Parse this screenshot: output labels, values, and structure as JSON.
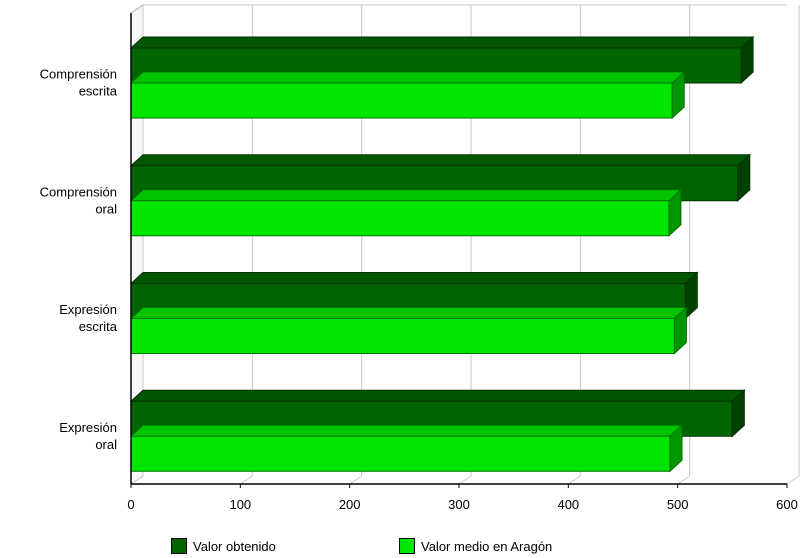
{
  "chart_data": {
    "type": "bar",
    "orientation": "horizontal",
    "style": "3d",
    "categories": [
      [
        "Comprensión",
        "escrita"
      ],
      [
        "Comprensión",
        "oral"
      ],
      [
        "Expresión",
        "escrita"
      ],
      [
        "Expresión",
        "oral"
      ]
    ],
    "series": [
      {
        "name": "Valor obtenido",
        "color": "#006400",
        "values": [
          558,
          555,
          507,
          550
        ]
      },
      {
        "name": "Valor medio en Aragón",
        "color": "#00e600",
        "values": [
          495,
          492,
          497,
          493
        ]
      }
    ],
    "xlim": [
      0,
      600
    ],
    "xticks": [
      0,
      100,
      200,
      300,
      400,
      500,
      600
    ],
    "grid": true,
    "legend_position": "bottom"
  }
}
